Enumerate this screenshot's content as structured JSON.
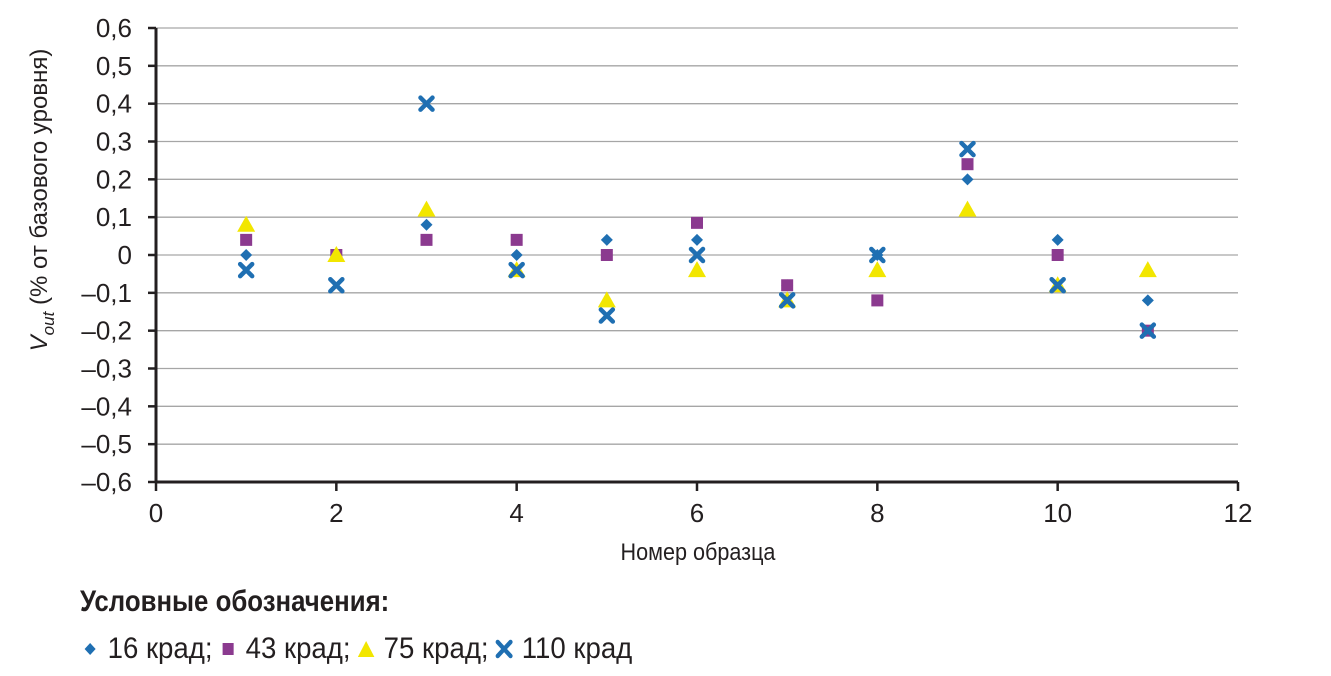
{
  "chart_data": {
    "type": "scatter",
    "xlabel": "Номер образца",
    "ylabel_main": "V",
    "ylabel_sub": "out",
    "ylabel_rest": " (% от базового уровня)",
    "xlim": [
      0,
      12
    ],
    "ylim": [
      -0.6,
      0.6
    ],
    "x_ticks": [
      {
        "v": 0,
        "label": "0"
      },
      {
        "v": 2,
        "label": "2"
      },
      {
        "v": 4,
        "label": "4"
      },
      {
        "v": 6,
        "label": "6"
      },
      {
        "v": 8,
        "label": "8"
      },
      {
        "v": 10,
        "label": "10"
      },
      {
        "v": 12,
        "label": "12"
      }
    ],
    "y_ticks": [
      {
        "v": 0.6,
        "label": "0,6"
      },
      {
        "v": 0.5,
        "label": "0,5"
      },
      {
        "v": 0.4,
        "label": "0,4"
      },
      {
        "v": 0.3,
        "label": "0,3"
      },
      {
        "v": 0.2,
        "label": "0,2"
      },
      {
        "v": 0.1,
        "label": "0,1"
      },
      {
        "v": 0,
        "label": "0"
      },
      {
        "v": -0.1,
        "label": "–0,1"
      },
      {
        "v": -0.2,
        "label": "–0,2"
      },
      {
        "v": -0.3,
        "label": "–0,3"
      },
      {
        "v": -0.4,
        "label": "–0,4"
      },
      {
        "v": -0.5,
        "label": "–0,5"
      },
      {
        "v": -0.6,
        "label": "–0,6"
      }
    ],
    "grid": true,
    "legend_position": "bottom",
    "series": [
      {
        "name": "16 крад",
        "marker": "diamond",
        "color": "#1f6fb2",
        "points": [
          [
            1,
            0
          ],
          [
            2,
            0
          ],
          [
            3,
            0.08
          ],
          [
            4,
            0
          ],
          [
            5,
            0.04
          ],
          [
            6,
            0.04
          ],
          [
            7,
            -0.08
          ],
          [
            8,
            0
          ],
          [
            9,
            0.2
          ],
          [
            10,
            0.04
          ],
          [
            11,
            -0.12
          ]
        ]
      },
      {
        "name": "43 крад",
        "marker": "square",
        "color": "#8b3a8f",
        "points": [
          [
            1,
            0.04
          ],
          [
            2,
            0
          ],
          [
            3,
            0.04
          ],
          [
            4,
            0.04
          ],
          [
            5,
            0
          ],
          [
            6,
            0.085
          ],
          [
            7,
            -0.08
          ],
          [
            8,
            -0.12
          ],
          [
            9,
            0.24
          ],
          [
            10,
            0
          ],
          [
            11,
            -0.2
          ]
        ]
      },
      {
        "name": "75 крад",
        "marker": "triangle",
        "color": "#f2e600",
        "points": [
          [
            1,
            0.08
          ],
          [
            2,
            0
          ],
          [
            3,
            0.12
          ],
          [
            4,
            -0.04
          ],
          [
            5,
            -0.12
          ],
          [
            6,
            -0.04
          ],
          [
            7,
            -0.12
          ],
          [
            8,
            -0.04
          ],
          [
            9,
            0.12
          ],
          [
            10,
            -0.08
          ],
          [
            11,
            -0.04
          ]
        ]
      },
      {
        "name": "110 крад",
        "marker": "x",
        "color": "#1f6fb2",
        "points": [
          [
            1,
            -0.04
          ],
          [
            2,
            -0.08
          ],
          [
            3,
            0.4
          ],
          [
            4,
            -0.04
          ],
          [
            5,
            -0.16
          ],
          [
            6,
            0
          ],
          [
            7,
            -0.12
          ],
          [
            8,
            0
          ],
          [
            9,
            0.28
          ],
          [
            10,
            -0.08
          ],
          [
            11,
            -0.2
          ]
        ]
      }
    ]
  },
  "legend": {
    "title": "Условные обозначения:",
    "items": [
      {
        "label": "16 крад",
        "sep": ";"
      },
      {
        "label": "43 крад",
        "sep": ";"
      },
      {
        "label": "75 крад",
        "sep": ";"
      },
      {
        "label": "110 крад",
        "sep": ""
      }
    ]
  }
}
